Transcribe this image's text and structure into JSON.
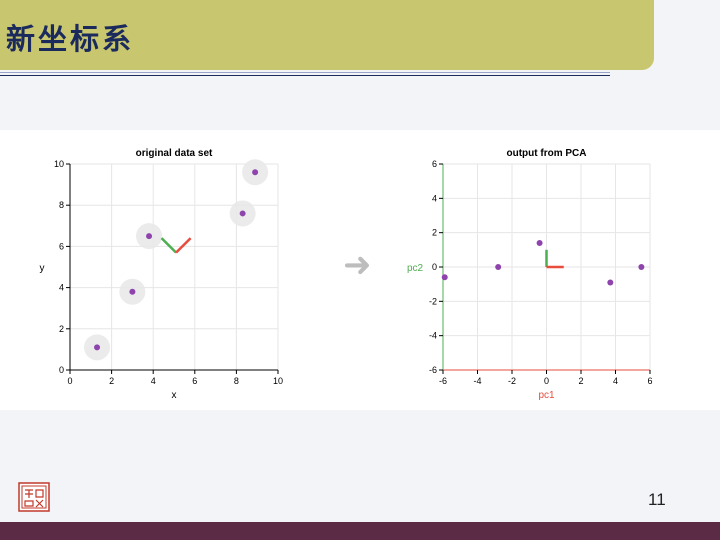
{
  "slide": {
    "title": "新坐标系",
    "page_number": "11",
    "arrow_glyph": "➜",
    "seal_icon": "university-seal-icon",
    "colors": {
      "title_bar": "#c8c66e",
      "title_text": "#1b2a5c",
      "footer_bar": "#5b2a44",
      "point": "#8e44ad",
      "axis_green": "#4caf50",
      "axis_red": "#e74c3c"
    }
  },
  "chart_data": [
    {
      "type": "scatter",
      "title": "original data set",
      "xlabel": "x",
      "ylabel": "y",
      "xlim": [
        0,
        10
      ],
      "ylim": [
        0,
        10
      ],
      "xticks": [
        0,
        2,
        4,
        6,
        8,
        10
      ],
      "yticks": [
        0,
        2,
        4,
        6,
        8,
        10
      ],
      "grid": true,
      "points": [
        {
          "x": 1.3,
          "y": 1.1
        },
        {
          "x": 3.0,
          "y": 3.8
        },
        {
          "x": 3.8,
          "y": 6.5
        },
        {
          "x": 8.3,
          "y": 7.6
        },
        {
          "x": 8.9,
          "y": 9.6
        }
      ],
      "principal_axes": {
        "origin": [
          5.1,
          5.7
        ],
        "green_end": [
          4.4,
          6.4
        ],
        "red_end": [
          5.8,
          6.4
        ]
      }
    },
    {
      "type": "scatter",
      "title": "output from PCA",
      "xlabel": "pc1",
      "ylabel": "pc2",
      "xlim": [
        -6,
        6
      ],
      "ylim": [
        -6,
        6
      ],
      "xticks": [
        -6,
        -4,
        -2,
        0,
        2,
        4,
        6
      ],
      "yticks": [
        -6,
        -4,
        -2,
        0,
        2,
        4,
        6
      ],
      "grid": true,
      "points": [
        {
          "x": -5.9,
          "y": -0.6
        },
        {
          "x": -2.8,
          "y": 0.0
        },
        {
          "x": -0.4,
          "y": 1.4
        },
        {
          "x": 3.7,
          "y": -0.9
        },
        {
          "x": 5.5,
          "y": 0.0
        }
      ],
      "principal_axes": {
        "origin": [
          0.0,
          0.0
        ],
        "green_end": [
          0.0,
          1.0
        ],
        "red_end": [
          1.0,
          0.0
        ]
      }
    }
  ]
}
